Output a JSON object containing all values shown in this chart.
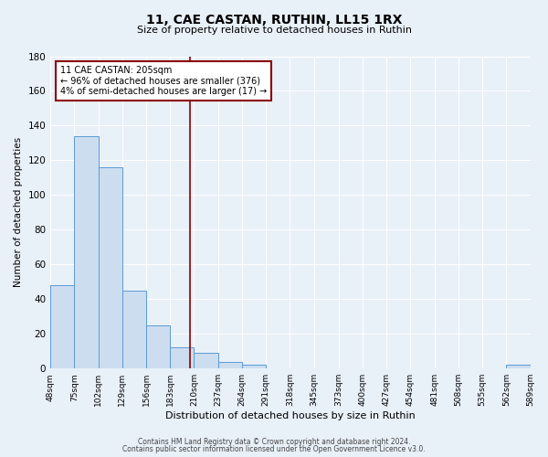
{
  "title": "11, CAE CASTAN, RUTHIN, LL15 1RX",
  "subtitle": "Size of property relative to detached houses in Ruthin",
  "xlabel": "Distribution of detached houses by size in Ruthin",
  "ylabel": "Number of detached properties",
  "bar_color": "#cdddf0",
  "bar_edge_color": "#5b9bd5",
  "background_color": "#e8f0f8",
  "grid_color": "#ffffff",
  "vline_x": 205,
  "vline_color": "#8b0000",
  "bin_edges": [
    48,
    75,
    102,
    129,
    156,
    183,
    210,
    237,
    264,
    291,
    318,
    345,
    373,
    400,
    427,
    454,
    481,
    508,
    535,
    562,
    589
  ],
  "bin_labels": [
    "48sqm",
    "75sqm",
    "102sqm",
    "129sqm",
    "156sqm",
    "183sqm",
    "210sqm",
    "237sqm",
    "264sqm",
    "291sqm",
    "318sqm",
    "345sqm",
    "373sqm",
    "400sqm",
    "427sqm",
    "454sqm",
    "481sqm",
    "508sqm",
    "535sqm",
    "562sqm",
    "589sqm"
  ],
  "bar_heights": [
    48,
    134,
    116,
    45,
    25,
    12,
    9,
    4,
    2,
    0,
    0,
    0,
    0,
    0,
    0,
    0,
    0,
    0,
    0,
    2
  ],
  "ylim": [
    0,
    180
  ],
  "yticks": [
    0,
    20,
    40,
    60,
    80,
    100,
    120,
    140,
    160,
    180
  ],
  "annotation_title": "11 CAE CASTAN: 205sqm",
  "annotation_line1": "← 96% of detached houses are smaller (376)",
  "annotation_line2": "4% of semi-detached houses are larger (17) →",
  "annotation_box_color": "#ffffff",
  "annotation_box_edge": "#8b0000",
  "footer1": "Contains HM Land Registry data © Crown copyright and database right 2024.",
  "footer2": "Contains public sector information licensed under the Open Government Licence v3.0."
}
